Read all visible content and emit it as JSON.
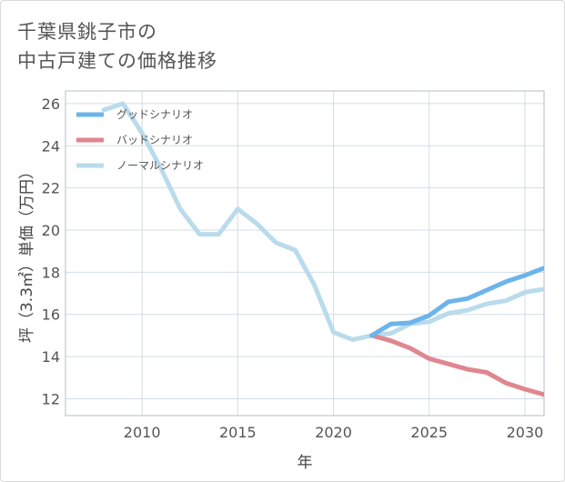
{
  "title": {
    "line1": "千葉県銚子市の",
    "line2": "中古戸建ての価格推移"
  },
  "chart_data": {
    "type": "line",
    "xlabel": "年",
    "ylabel": "坪（3.3㎡）単価（万円）",
    "xlim": [
      2006,
      2031
    ],
    "ylim": [
      11.2,
      26.6
    ],
    "xticks": [
      2010,
      2015,
      2020,
      2025,
      2030
    ],
    "yticks": [
      12,
      14,
      16,
      18,
      20,
      22,
      24,
      26
    ],
    "grid": true,
    "legend_position": "top-left",
    "series": [
      {
        "name": "グッドシナリオ",
        "color": "#6cb4ea",
        "x": [
          2022,
          2023,
          2024,
          2025,
          2026,
          2027,
          2028,
          2029,
          2030,
          2031
        ],
        "y": [
          15.0,
          15.55,
          15.6,
          15.95,
          16.6,
          16.75,
          17.15,
          17.55,
          17.85,
          18.2
        ]
      },
      {
        "name": "バッドシナリオ",
        "color": "#e0868f",
        "x": [
          2022,
          2023,
          2024,
          2025,
          2026,
          2027,
          2028,
          2029,
          2030,
          2031
        ],
        "y": [
          15.0,
          14.75,
          14.4,
          13.9,
          13.65,
          13.4,
          13.25,
          12.75,
          12.45,
          12.2
        ]
      },
      {
        "name": "ノーマルシナリオ",
        "color": "#b9dbec",
        "x": [
          2008,
          2009,
          2010,
          2011,
          2012,
          2013,
          2014,
          2015,
          2016,
          2017,
          2018,
          2019,
          2020,
          2021,
          2022,
          2023,
          2024,
          2025,
          2026,
          2027,
          2028,
          2029,
          2030,
          2031
        ],
        "y": [
          25.7,
          26.0,
          24.6,
          22.9,
          21.0,
          19.8,
          19.8,
          21.0,
          20.3,
          19.4,
          19.05,
          17.4,
          15.15,
          14.8,
          15.0,
          15.1,
          15.55,
          15.65,
          16.05,
          16.2,
          16.5,
          16.65,
          17.05,
          17.2
        ]
      }
    ]
  }
}
